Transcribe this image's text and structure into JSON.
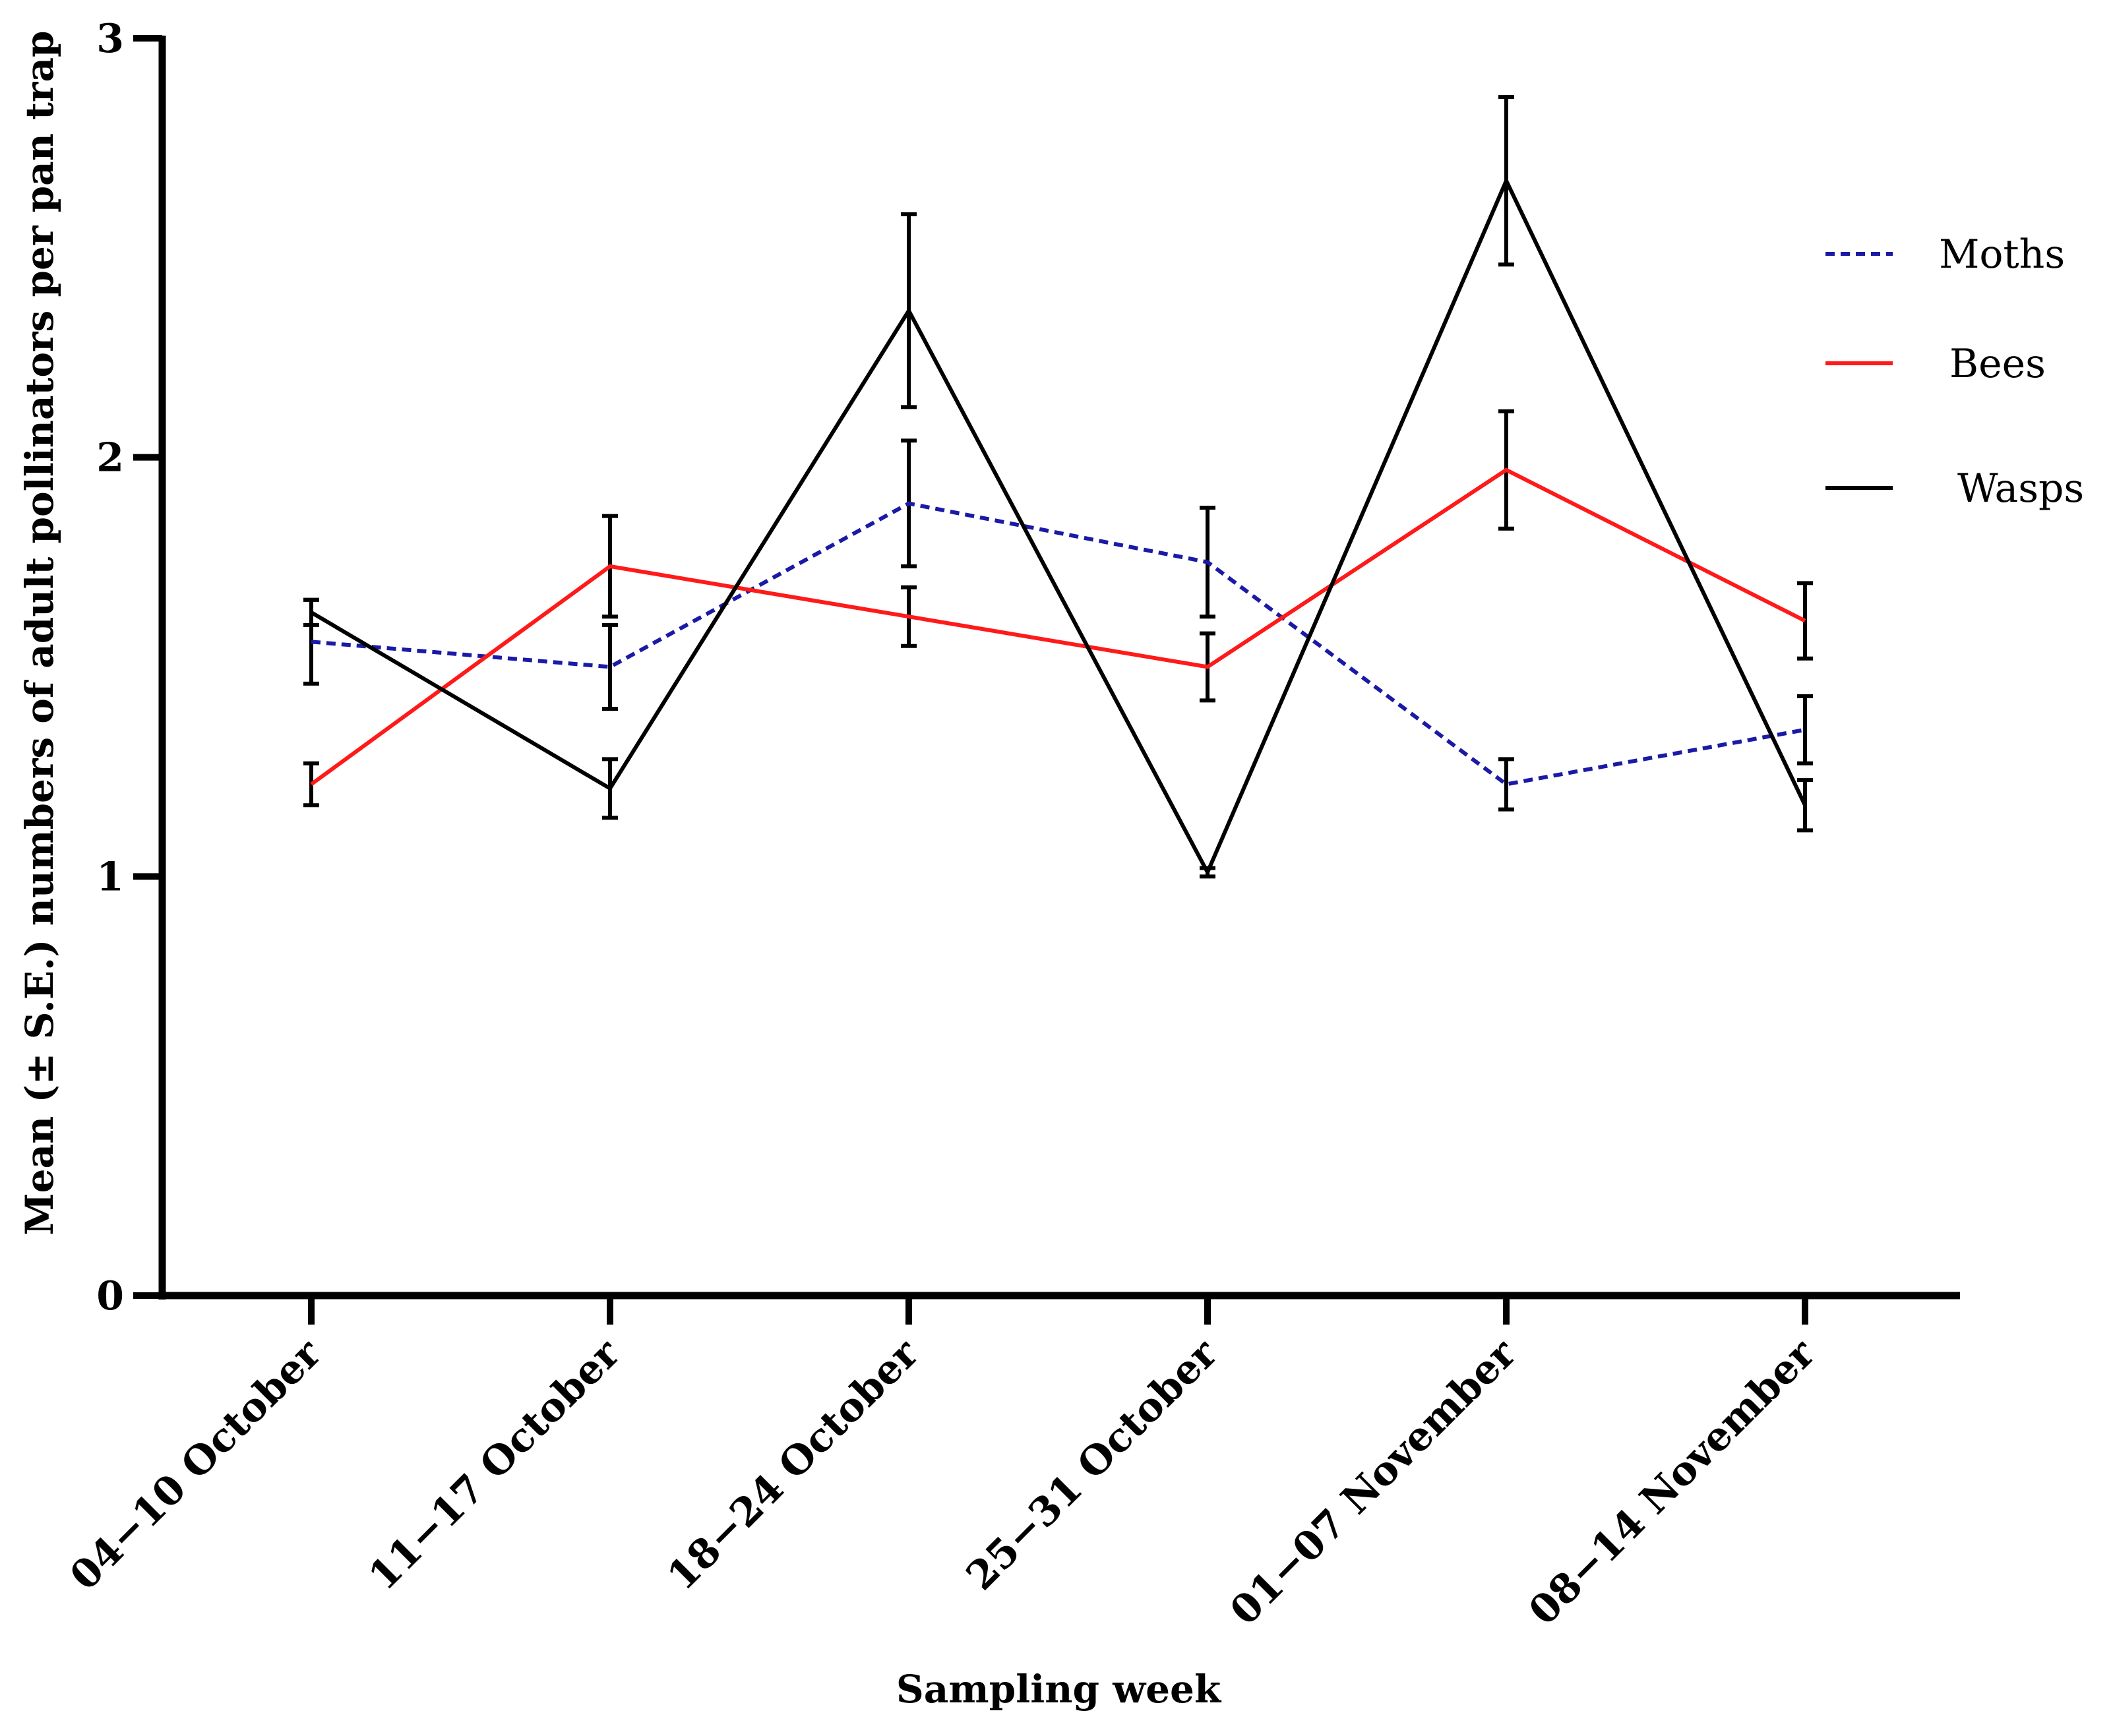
{
  "chart_data": {
    "type": "line",
    "title": "",
    "xlabel": "Sampling week",
    "ylabel": "Mean (± S.E.) numbers of adult pollinators per pan trap",
    "ylim": [
      0,
      3
    ],
    "yticks": [
      0,
      1,
      2,
      3
    ],
    "ytick_labels": [
      "0",
      "1",
      "2",
      "3"
    ],
    "categories": [
      "04−10 October",
      "11−17 October",
      "18−24 October",
      "25−31 October",
      "01−07 November",
      "08−14 November"
    ],
    "grid": false,
    "legend_position": "top-right",
    "series": [
      {
        "name": "Moths",
        "color": "#1a1aa6",
        "dash": "dashed",
        "values": [
          1.56,
          1.5,
          1.89,
          1.75,
          1.22,
          1.35
        ],
        "se": [
          0.1,
          0.1,
          0.15,
          0.13,
          0.06,
          0.08
        ]
      },
      {
        "name": "Bees",
        "color": "#ff1a1a",
        "dash": "solid",
        "values": [
          1.22,
          1.74,
          1.62,
          1.5,
          1.97,
          1.61
        ],
        "se": [
          0.05,
          0.12,
          0.07,
          0.08,
          0.14,
          0.09
        ]
      },
      {
        "name": "Wasps",
        "color": "#000000",
        "dash": "solid",
        "values": [
          1.63,
          1.21,
          2.35,
          1.01,
          2.66,
          1.17
        ],
        "se": [
          0.03,
          0.07,
          0.23,
          0.01,
          0.2,
          0.06
        ]
      }
    ]
  }
}
